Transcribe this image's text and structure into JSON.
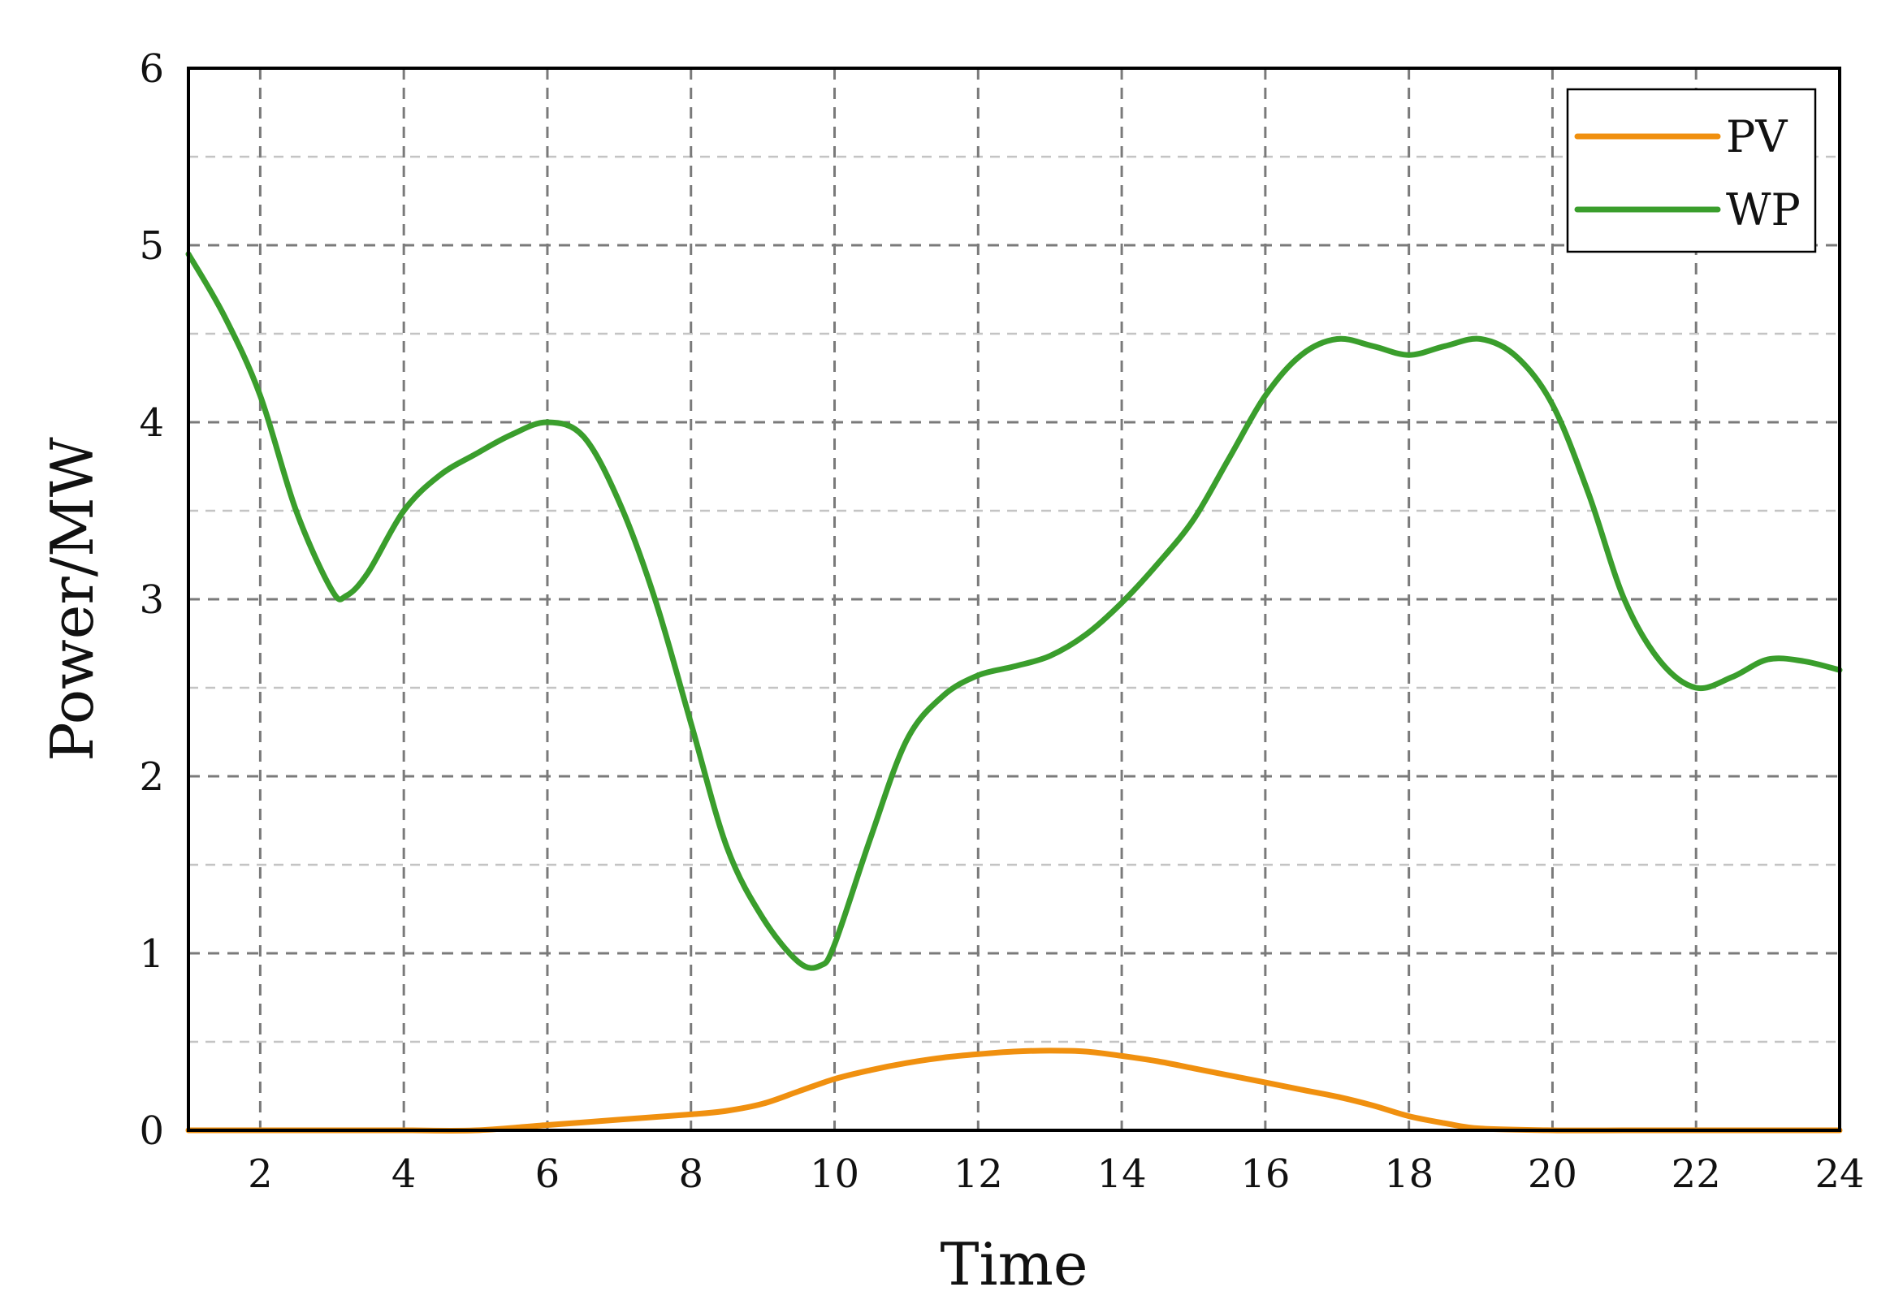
{
  "chart_data": {
    "type": "line",
    "title": "",
    "xlabel": "Time",
    "ylabel": "Power/MW",
    "xlim": [
      1,
      24
    ],
    "ylim": [
      0,
      6
    ],
    "xticks": [
      2,
      4,
      6,
      8,
      10,
      12,
      14,
      16,
      18,
      20,
      22,
      24
    ],
    "yticks": [
      0,
      1,
      2,
      3,
      4,
      5,
      6
    ],
    "yminor": [
      0.5,
      1.5,
      2.5,
      3.5,
      4.5,
      5.5
    ],
    "grid": true,
    "legend": "top-right",
    "series": [
      {
        "name": "PV",
        "color": "#f0900f",
        "x": [
          1,
          2,
          3,
          4,
          5,
          6,
          7,
          8,
          8.5,
          9,
          9.5,
          10,
          10.5,
          11,
          11.5,
          12,
          12.5,
          13,
          13.5,
          14,
          14.5,
          15,
          15.5,
          16,
          16.5,
          17,
          17.5,
          18,
          18.5,
          19,
          20,
          21,
          22,
          23,
          24
        ],
        "y": [
          0,
          0,
          0,
          0,
          0,
          0.03,
          0.06,
          0.09,
          0.11,
          0.15,
          0.22,
          0.29,
          0.34,
          0.38,
          0.41,
          0.43,
          0.445,
          0.45,
          0.445,
          0.42,
          0.39,
          0.35,
          0.31,
          0.27,
          0.23,
          0.19,
          0.14,
          0.08,
          0.04,
          0.01,
          0,
          0,
          0,
          0,
          0
        ]
      },
      {
        "name": "WP",
        "color": "#3a9e2c",
        "x": [
          1,
          1.5,
          2,
          2.5,
          3,
          3.2,
          3.5,
          4,
          4.5,
          5,
          5.5,
          6,
          6.5,
          7,
          7.5,
          8,
          8.5,
          9,
          9.5,
          9.8,
          10,
          10.5,
          11,
          11.5,
          12,
          12.5,
          13,
          13.5,
          14,
          14.5,
          15,
          15.5,
          16,
          16.5,
          17,
          17.5,
          18,
          18.5,
          19,
          19.5,
          20,
          20.5,
          21,
          21.5,
          22,
          22.5,
          23,
          23.5,
          24
        ],
        "y": [
          4.95,
          4.6,
          4.15,
          3.5,
          3.05,
          3.02,
          3.15,
          3.5,
          3.7,
          3.82,
          3.93,
          4.0,
          3.92,
          3.55,
          3.0,
          2.3,
          1.6,
          1.2,
          0.95,
          0.93,
          1.05,
          1.65,
          2.2,
          2.45,
          2.57,
          2.62,
          2.68,
          2.8,
          2.98,
          3.2,
          3.45,
          3.8,
          4.15,
          4.38,
          4.47,
          4.43,
          4.38,
          4.43,
          4.47,
          4.37,
          4.1,
          3.6,
          3.0,
          2.65,
          2.5,
          2.56,
          2.66,
          2.65,
          2.6
        ]
      }
    ]
  }
}
